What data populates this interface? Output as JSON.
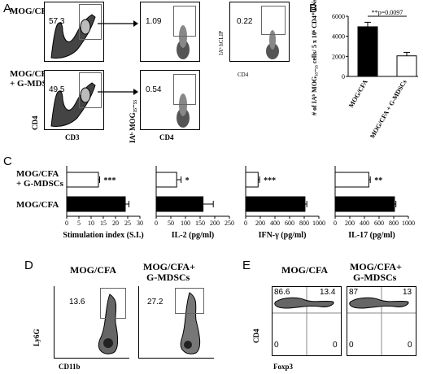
{
  "panels": {
    "A": {
      "letter": "A",
      "row_labels": [
        "MOG/CFA",
        "MOG/CFA",
        "+ G-MDSCs"
      ],
      "gates": [
        "57.3",
        "1.09",
        "0.22",
        "49.5",
        "0.54"
      ],
      "axes": {
        "cd4": "CD4",
        "cd3": "CD3",
        "iab_mog": "IAᵇ MOG₃₅₋₅₅",
        "cd4_x": "CD4",
        "iab_clip": "IAᵇ hCLIP",
        "cd4_x2": "CD4"
      }
    },
    "B": {
      "letter": "B",
      "pvalue": "**p=0.0097",
      "ylabel": "# of IAᵇ MOG₃₅₋₅₅ cells/ 5 x 10⁶ CD4⁺ LNs",
      "yticks": [
        "6000",
        "4000",
        "2000",
        "0"
      ],
      "categories": [
        "MOG/CFA",
        "MOG/CFA + G-MDSCs"
      ]
    },
    "C": {
      "letter": "C",
      "row_labels": [
        "MOG/CFA",
        "+ G-MDSCs",
        "MOG/CFA"
      ],
      "subplots": [
        {
          "xlabel": "Stimulation index (S.I.)",
          "ticks": [
            "0",
            "5",
            "10",
            "15",
            "20",
            "25",
            "30"
          ],
          "sig": "***"
        },
        {
          "xlabel": "IL-2 (pg/ml)",
          "ticks": [
            "0",
            "50",
            "100",
            "150",
            "200",
            "250"
          ],
          "sig": "*"
        },
        {
          "xlabel": "IFN-γ (pg/ml)",
          "ticks": [
            "0",
            "200",
            "400",
            "600",
            "800",
            "1000"
          ],
          "sig": "***"
        },
        {
          "xlabel": "IL-17 (pg/ml)",
          "ticks": [
            "0",
            "200",
            "400",
            "600",
            "800",
            "1000"
          ],
          "sig": "**"
        }
      ]
    },
    "D": {
      "letter": "D",
      "titles": [
        "MOG/CFA",
        "MOG/CFA+",
        "G-MDSCs"
      ],
      "gates": [
        "13.6",
        "27.2"
      ],
      "ylabel": "Ly6G",
      "xlabel": "CD11b"
    },
    "E": {
      "letter": "E",
      "titles": [
        "MOG/CFA",
        "MOG/CFA+",
        "G-MDSCs"
      ],
      "quadrants": [
        "86.6",
        "13.4",
        "0",
        "0",
        "87",
        "13",
        "0",
        "0"
      ],
      "ylabel": "CD4",
      "xlabel": "Foxp3"
    }
  },
  "chart_data": [
    {
      "type": "bar",
      "panel": "B",
      "categories": [
        "MOG/CFA",
        "MOG/CFA + G-MDSCs"
      ],
      "values": [
        4950,
        2050
      ],
      "errors": [
        450,
        350
      ],
      "ylim": [
        0,
        6000
      ],
      "colors": [
        "#000000",
        "#ffffff"
      ]
    },
    {
      "type": "bar",
      "panel": "C",
      "orientation": "horizontal",
      "categories": [
        "MOG/CFA + G-MDSCs",
        "MOG/CFA"
      ],
      "subplots": [
        {
          "xlabel": "Stimulation index (S.I.)",
          "xlim": [
            0,
            30
          ],
          "values": [
            13,
            24
          ],
          "errors": [
            0.5,
            1.5
          ]
        },
        {
          "xlabel": "IL-2 (pg/ml)",
          "xlim": [
            0,
            250
          ],
          "values": [
            70,
            160
          ],
          "errors": [
            15,
            35
          ]
        },
        {
          "xlabel": "IFN-γ (pg/ml)",
          "xlim": [
            0,
            1000
          ],
          "values": [
            170,
            810
          ],
          "errors": [
            20,
            25
          ]
        },
        {
          "xlabel": "IL-17 (pg/ml)",
          "xlim": [
            0,
            1000
          ],
          "values": [
            460,
            810
          ],
          "errors": [
            20,
            20
          ]
        }
      ]
    }
  ]
}
